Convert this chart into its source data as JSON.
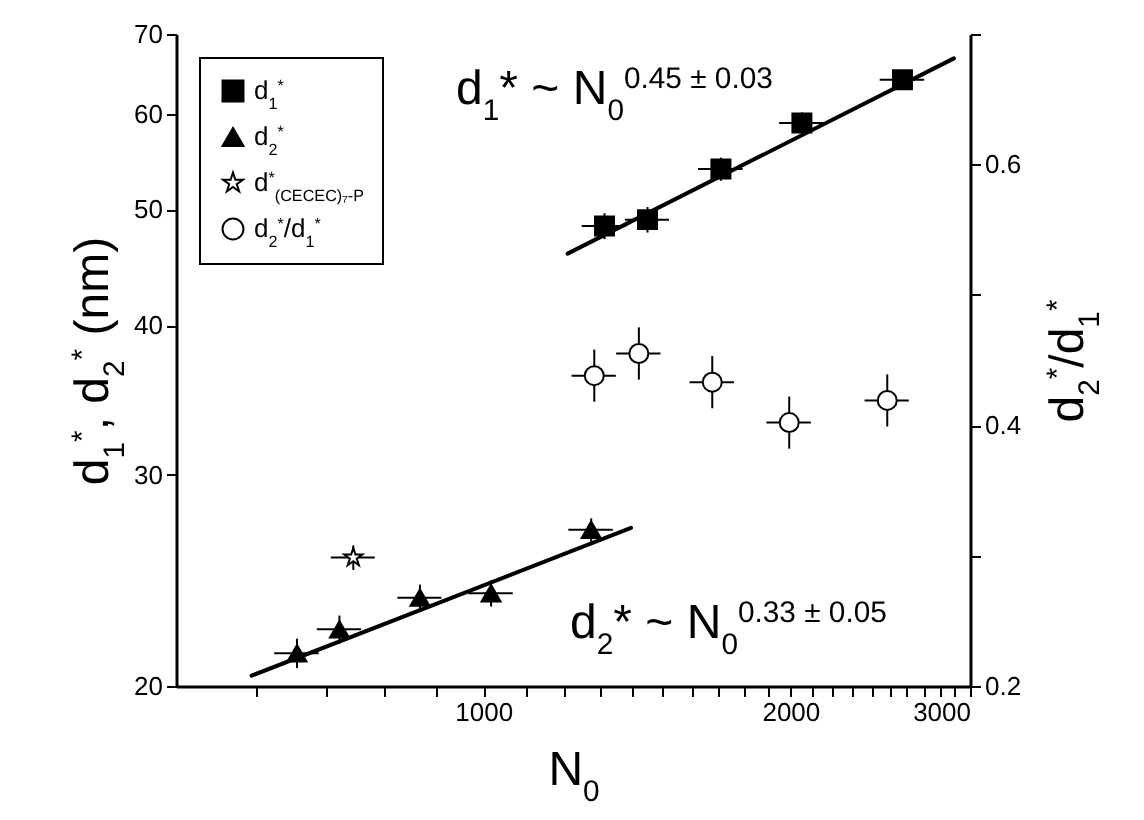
{
  "chart_data": {
    "type": "scatter",
    "xlabel": "N$_{0}$",
    "ylabel": "d$_{1}$$^{*}$, d$_{2}$$^{*}$ (nm)",
    "y2label": "d$_{2}$$^{*}$/d$_{1}$$^{*}$",
    "log": "xy",
    "grid": false,
    "legend": "top left",
    "xlim": [
      500,
      3000
    ],
    "xticks": [
      {
        "value": 600,
        "label": null
      },
      {
        "value": 700,
        "label": null
      },
      {
        "value": 800,
        "label": null
      },
      {
        "value": 900,
        "label": null
      },
      1000,
      {
        "value": 1100,
        "label": null
      },
      {
        "value": 1200,
        "label": null
      },
      {
        "value": 1300,
        "label": null
      },
      {
        "value": 1400,
        "label": null
      },
      {
        "value": 1500,
        "label": null
      },
      {
        "value": 1600,
        "label": null
      },
      {
        "value": 1700,
        "label": null
      },
      {
        "value": 1800,
        "label": null
      },
      {
        "value": 1900,
        "label": null
      },
      2000,
      {
        "value": 2100,
        "label": null
      },
      {
        "value": 2200,
        "label": null
      },
      {
        "value": 2300,
        "label": null
      },
      {
        "value": 2400,
        "label": null
      },
      {
        "value": 2500,
        "label": null
      },
      {
        "value": 2600,
        "label": null
      },
      {
        "value": 2700,
        "label": null
      },
      {
        "value": 2800,
        "label": null
      },
      {
        "value": 2900,
        "label": null
      },
      3000
    ],
    "ylim": [
      20,
      70
    ],
    "yticks": [
      20,
      30,
      40,
      50,
      60,
      70
    ],
    "y2lim": [
      0.2,
      0.7
    ],
    "y2ticks": [
      0.2,
      {
        "value": 0.3,
        "label": null
      },
      0.4,
      {
        "value": 0.5,
        "label": null
      },
      0.6,
      {
        "value": 0.7,
        "label": null
      }
    ],
    "annotations": [
      "d$_{1}$* ~ N$_{0}$$^{0.45 ± 0.03}$",
      "d$_{2}$* ~ N$_{0}$$^{0.33 ± 0.05}$"
    ],
    "series": [
      {
        "name": "d$_{1}$$^{*}$",
        "type": "scatter",
        "marker": "square",
        "color": "#000000",
        "x": [
          1315,
          1449,
          1710,
          2053,
          2576
        ],
        "values": [
          48.4,
          49.0,
          54.0,
          59.0,
          64.1
        ],
        "errors": [
          1.2,
          1.2,
          1.2,
          1.2,
          1.2
        ],
        "xerrors": [
          66,
          72,
          86,
          103,
          129
        ]
      },
      {
        "name": "d$_{2}$$^{*}$",
        "type": "scatter",
        "marker": "triangle",
        "color": "#000000",
        "x": [
          657,
          723,
          867,
          1018,
          1276
        ],
        "values": [
          21.3,
          22.3,
          23.7,
          23.9,
          27.0
        ],
        "errors": [
          0.6,
          0.6,
          0.6,
          0.6,
          0.6
        ],
        "xerrors": [
          33,
          36,
          43,
          51,
          64
        ]
      },
      {
        "name": "d$^{*}$$_{(CECEC)₇-P}$",
        "marker": "star",
        "color": "#ffffff",
        "x": [
          746
        ],
        "values": [
          25.6
        ],
        "errors": [
          0.6
        ],
        "xerrors": [
          37
        ]
      },
      {
        "name": "d$_{2}$$^{*}$/d$_{1}$$^{*}$",
        "marker": "circle",
        "color": "#ffffff",
        "axis": "y2",
        "x": [
          1285,
          1421,
          1677,
          1995,
          2489
        ],
        "values": [
          0.438,
          0.455,
          0.433,
          0.402,
          0.419
        ],
        "errors": [
          0.02,
          0.02,
          0.02,
          0.02,
          0.02
        ],
        "xerrors": [
          64,
          71,
          84,
          100,
          124
        ]
      },
      {
        "type": "line",
        "color": "#000000",
        "marker": "none",
        "line_style": "solid",
        "x": [
          1210,
          2893
        ],
        "values": [
          45.9,
          66.8
        ]
      },
      {
        "type": "line",
        "color": "#000000",
        "marker": "none",
        "line_style": "solid",
        "x": [
          593,
          1396
        ],
        "values": [
          20.4,
          27.1
        ]
      }
    ]
  }
}
